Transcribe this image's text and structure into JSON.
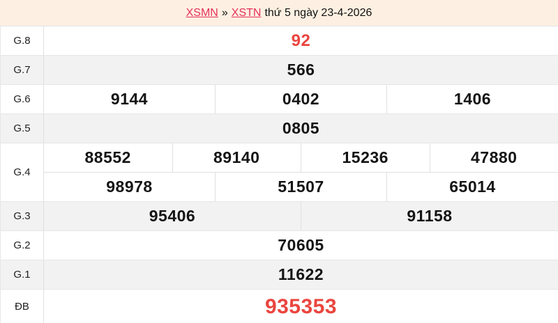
{
  "header": {
    "region_link": "XSMN",
    "separator": "»",
    "province_link": "XSTN",
    "date_text": "thứ 5 ngày 23-4-2026"
  },
  "colors": {
    "page_background": "#fdf0e2",
    "row_shade": "#f2f2f2",
    "border": "#e0e0e0",
    "number_red": "#ea453f",
    "link_red": "#e4315b",
    "number_black": "#141414"
  },
  "prizes": [
    {
      "id": "g8",
      "label": "G.8",
      "rows": [
        [
          "92"
        ]
      ],
      "shade": false,
      "highlight": true,
      "large": false
    },
    {
      "id": "g7",
      "label": "G.7",
      "rows": [
        [
          "566"
        ]
      ],
      "shade": true,
      "highlight": false,
      "large": false
    },
    {
      "id": "g6",
      "label": "G.6",
      "rows": [
        [
          "9144",
          "0402",
          "1406"
        ]
      ],
      "shade": false,
      "highlight": false,
      "large": false
    },
    {
      "id": "g5",
      "label": "G.5",
      "rows": [
        [
          "0805"
        ]
      ],
      "shade": true,
      "highlight": false,
      "large": false
    },
    {
      "id": "g4",
      "label": "G.4",
      "rows": [
        [
          "88552",
          "89140",
          "15236",
          "47880"
        ],
        [
          "98978",
          "51507",
          "65014"
        ]
      ],
      "shade": false,
      "highlight": false,
      "large": false
    },
    {
      "id": "g3",
      "label": "G.3",
      "rows": [
        [
          "95406",
          "91158"
        ]
      ],
      "shade": true,
      "highlight": false,
      "large": false
    },
    {
      "id": "g2",
      "label": "G.2",
      "rows": [
        [
          "70605"
        ]
      ],
      "shade": false,
      "highlight": false,
      "large": false
    },
    {
      "id": "g1",
      "label": "G.1",
      "rows": [
        [
          "11622"
        ]
      ],
      "shade": true,
      "highlight": false,
      "large": false
    },
    {
      "id": "db",
      "label": "ĐB",
      "rows": [
        [
          "935353"
        ]
      ],
      "shade": false,
      "highlight": true,
      "large": true
    }
  ]
}
